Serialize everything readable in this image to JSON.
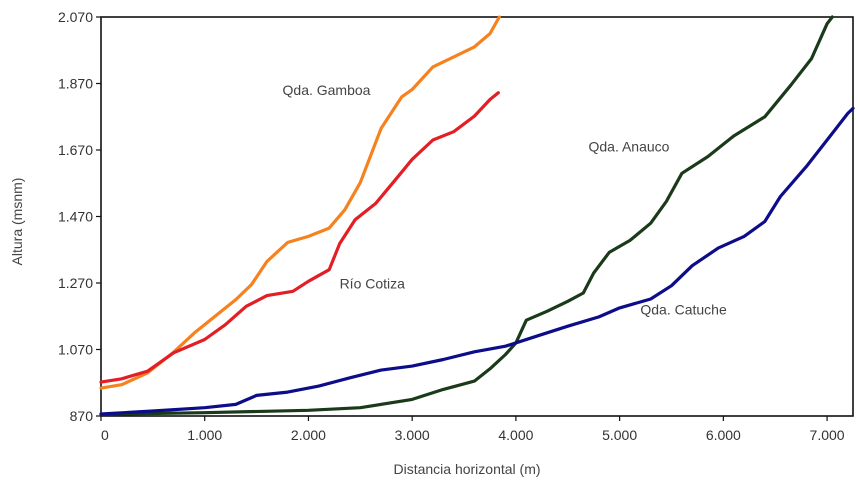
{
  "chart_data": {
    "type": "line",
    "title": "",
    "xlabel": "Distancia horizontal (m)",
    "ylabel": "Altura (msnm)",
    "xlim": [
      0,
      7250
    ],
    "ylim": [
      870,
      2070
    ],
    "x_ticks": [
      0,
      1000,
      2000,
      3000,
      4000,
      5000,
      6000,
      7000
    ],
    "x_tick_labels": [
      "0",
      "1.000",
      "2.000",
      "3.000",
      "4.000",
      "5.000",
      "6.000",
      "7.000"
    ],
    "y_ticks": [
      870,
      1070,
      1270,
      1470,
      1670,
      1870,
      2070
    ],
    "y_tick_labels": [
      "870",
      "1.070",
      "1.270",
      "1.470",
      "1.670",
      "1.870",
      "2.070"
    ],
    "grid": false,
    "series": [
      {
        "name": "Qda. Gamboa",
        "color": "#f5821f",
        "label_at": [
          1750,
          1850
        ],
        "points": [
          [
            0,
            954
          ],
          [
            200,
            964
          ],
          [
            450,
            1000
          ],
          [
            700,
            1062
          ],
          [
            900,
            1120
          ],
          [
            1100,
            1170
          ],
          [
            1300,
            1220
          ],
          [
            1450,
            1265
          ],
          [
            1600,
            1335
          ],
          [
            1800,
            1392
          ],
          [
            2000,
            1410
          ],
          [
            2200,
            1435
          ],
          [
            2350,
            1490
          ],
          [
            2500,
            1572
          ],
          [
            2700,
            1735
          ],
          [
            2900,
            1830
          ],
          [
            3000,
            1852
          ],
          [
            3200,
            1920
          ],
          [
            3400,
            1950
          ],
          [
            3600,
            1980
          ],
          [
            3750,
            2020
          ],
          [
            3840,
            2070
          ]
        ]
      },
      {
        "name": "Río Cotiza",
        "color": "#e31e24",
        "label_at": [
          2300,
          1268
        ],
        "points": [
          [
            0,
            972
          ],
          [
            200,
            982
          ],
          [
            450,
            1005
          ],
          [
            700,
            1060
          ],
          [
            1000,
            1100
          ],
          [
            1200,
            1145
          ],
          [
            1400,
            1200
          ],
          [
            1600,
            1232
          ],
          [
            1850,
            1245
          ],
          [
            2000,
            1275
          ],
          [
            2200,
            1310
          ],
          [
            2300,
            1388
          ],
          [
            2450,
            1460
          ],
          [
            2650,
            1510
          ],
          [
            2850,
            1585
          ],
          [
            3000,
            1642
          ],
          [
            3200,
            1700
          ],
          [
            3400,
            1725
          ],
          [
            3600,
            1772
          ],
          [
            3750,
            1822
          ],
          [
            3830,
            1842
          ]
        ]
      },
      {
        "name": "Qda. Anauco",
        "color": "#1a3a1a",
        "label_at": [
          4700,
          1680
        ],
        "points": [
          [
            0,
            875
          ],
          [
            1000,
            880
          ],
          [
            2000,
            887
          ],
          [
            2500,
            895
          ],
          [
            3000,
            920
          ],
          [
            3300,
            950
          ],
          [
            3600,
            975
          ],
          [
            3750,
            1012
          ],
          [
            3900,
            1055
          ],
          [
            4000,
            1090
          ],
          [
            4100,
            1158
          ],
          [
            4300,
            1185
          ],
          [
            4500,
            1215
          ],
          [
            4650,
            1240
          ],
          [
            4750,
            1300
          ],
          [
            4900,
            1362
          ],
          [
            5100,
            1398
          ],
          [
            5300,
            1450
          ],
          [
            5450,
            1515
          ],
          [
            5600,
            1600
          ],
          [
            5850,
            1650
          ],
          [
            6100,
            1712
          ],
          [
            6400,
            1770
          ],
          [
            6650,
            1865
          ],
          [
            6850,
            1945
          ],
          [
            7000,
            2050
          ],
          [
            7050,
            2070
          ]
        ]
      },
      {
        "name": "Qda. Catuche",
        "color": "#0d0d8a",
        "label_at": [
          5200,
          1190
        ],
        "points": [
          [
            0,
            876
          ],
          [
            500,
            885
          ],
          [
            1000,
            895
          ],
          [
            1300,
            905
          ],
          [
            1500,
            932
          ],
          [
            1800,
            942
          ],
          [
            2100,
            960
          ],
          [
            2400,
            985
          ],
          [
            2700,
            1008
          ],
          [
            3000,
            1020
          ],
          [
            3300,
            1040
          ],
          [
            3600,
            1063
          ],
          [
            3900,
            1080
          ],
          [
            4200,
            1110
          ],
          [
            4500,
            1140
          ],
          [
            4800,
            1168
          ],
          [
            5000,
            1195
          ],
          [
            5300,
            1222
          ],
          [
            5500,
            1262
          ],
          [
            5700,
            1322
          ],
          [
            5950,
            1375
          ],
          [
            6200,
            1410
          ],
          [
            6400,
            1455
          ],
          [
            6550,
            1530
          ],
          [
            6800,
            1620
          ],
          [
            7000,
            1700
          ],
          [
            7200,
            1780
          ],
          [
            7250,
            1795
          ]
        ]
      }
    ]
  }
}
